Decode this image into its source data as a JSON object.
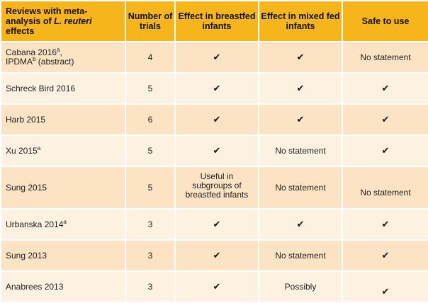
{
  "header": {
    "col0_line1": "Reviews with meta-",
    "col0_line2_prefix": "analysis of ",
    "col0_line2_italic": "L. reuteri",
    "col0_line3": "effects",
    "col1": "Number of trials",
    "col2": "Effect in breastfed infants",
    "col3": "Effect in mixed fed infants",
    "col4": "Safe to use"
  },
  "rows": [
    {
      "study_line1": "Cabana 2016",
      "study_line1_sup": "a",
      "study_line1_suffix": ",",
      "study_line2": "IPDMA",
      "study_line2_sup": "b",
      "study_line2_suffix": " (abstract)",
      "trials": "4",
      "breastfed": "✔",
      "mixed": "✔",
      "safe": "No statement"
    },
    {
      "study": "Schreck Bird 2016",
      "trials": "5",
      "breastfed": "✔",
      "mixed": "✔",
      "safe": "✔"
    },
    {
      "study": "Harb 2015",
      "trials": "6",
      "breastfed": "✔",
      "mixed": "✔",
      "safe": "✔"
    },
    {
      "study": "Xu 2015",
      "study_sup": "a",
      "trials": "5",
      "breastfed": "✔",
      "mixed": "No statement",
      "safe": "✔"
    },
    {
      "study": "Sung 2015",
      "trials": "5",
      "breastfed_line1": "Useful in",
      "breastfed_line2": "subgroups of",
      "breastfed_line3": "breastfed infants",
      "mixed": "No statement",
      "safe": "No statement"
    },
    {
      "study": "Urbanska 2014",
      "study_sup": "a",
      "trials": "3",
      "breastfed": "✔",
      "mixed": "✔",
      "safe": "✔"
    },
    {
      "study": "Sung 2013",
      "trials": "3",
      "breastfed": "✔",
      "mixed": "No statement",
      "safe": "✔"
    },
    {
      "study": "Anabrees 2013",
      "trials": "3",
      "breastfed": "✔",
      "mixed": "Possibly",
      "safe": "✔"
    }
  ]
}
